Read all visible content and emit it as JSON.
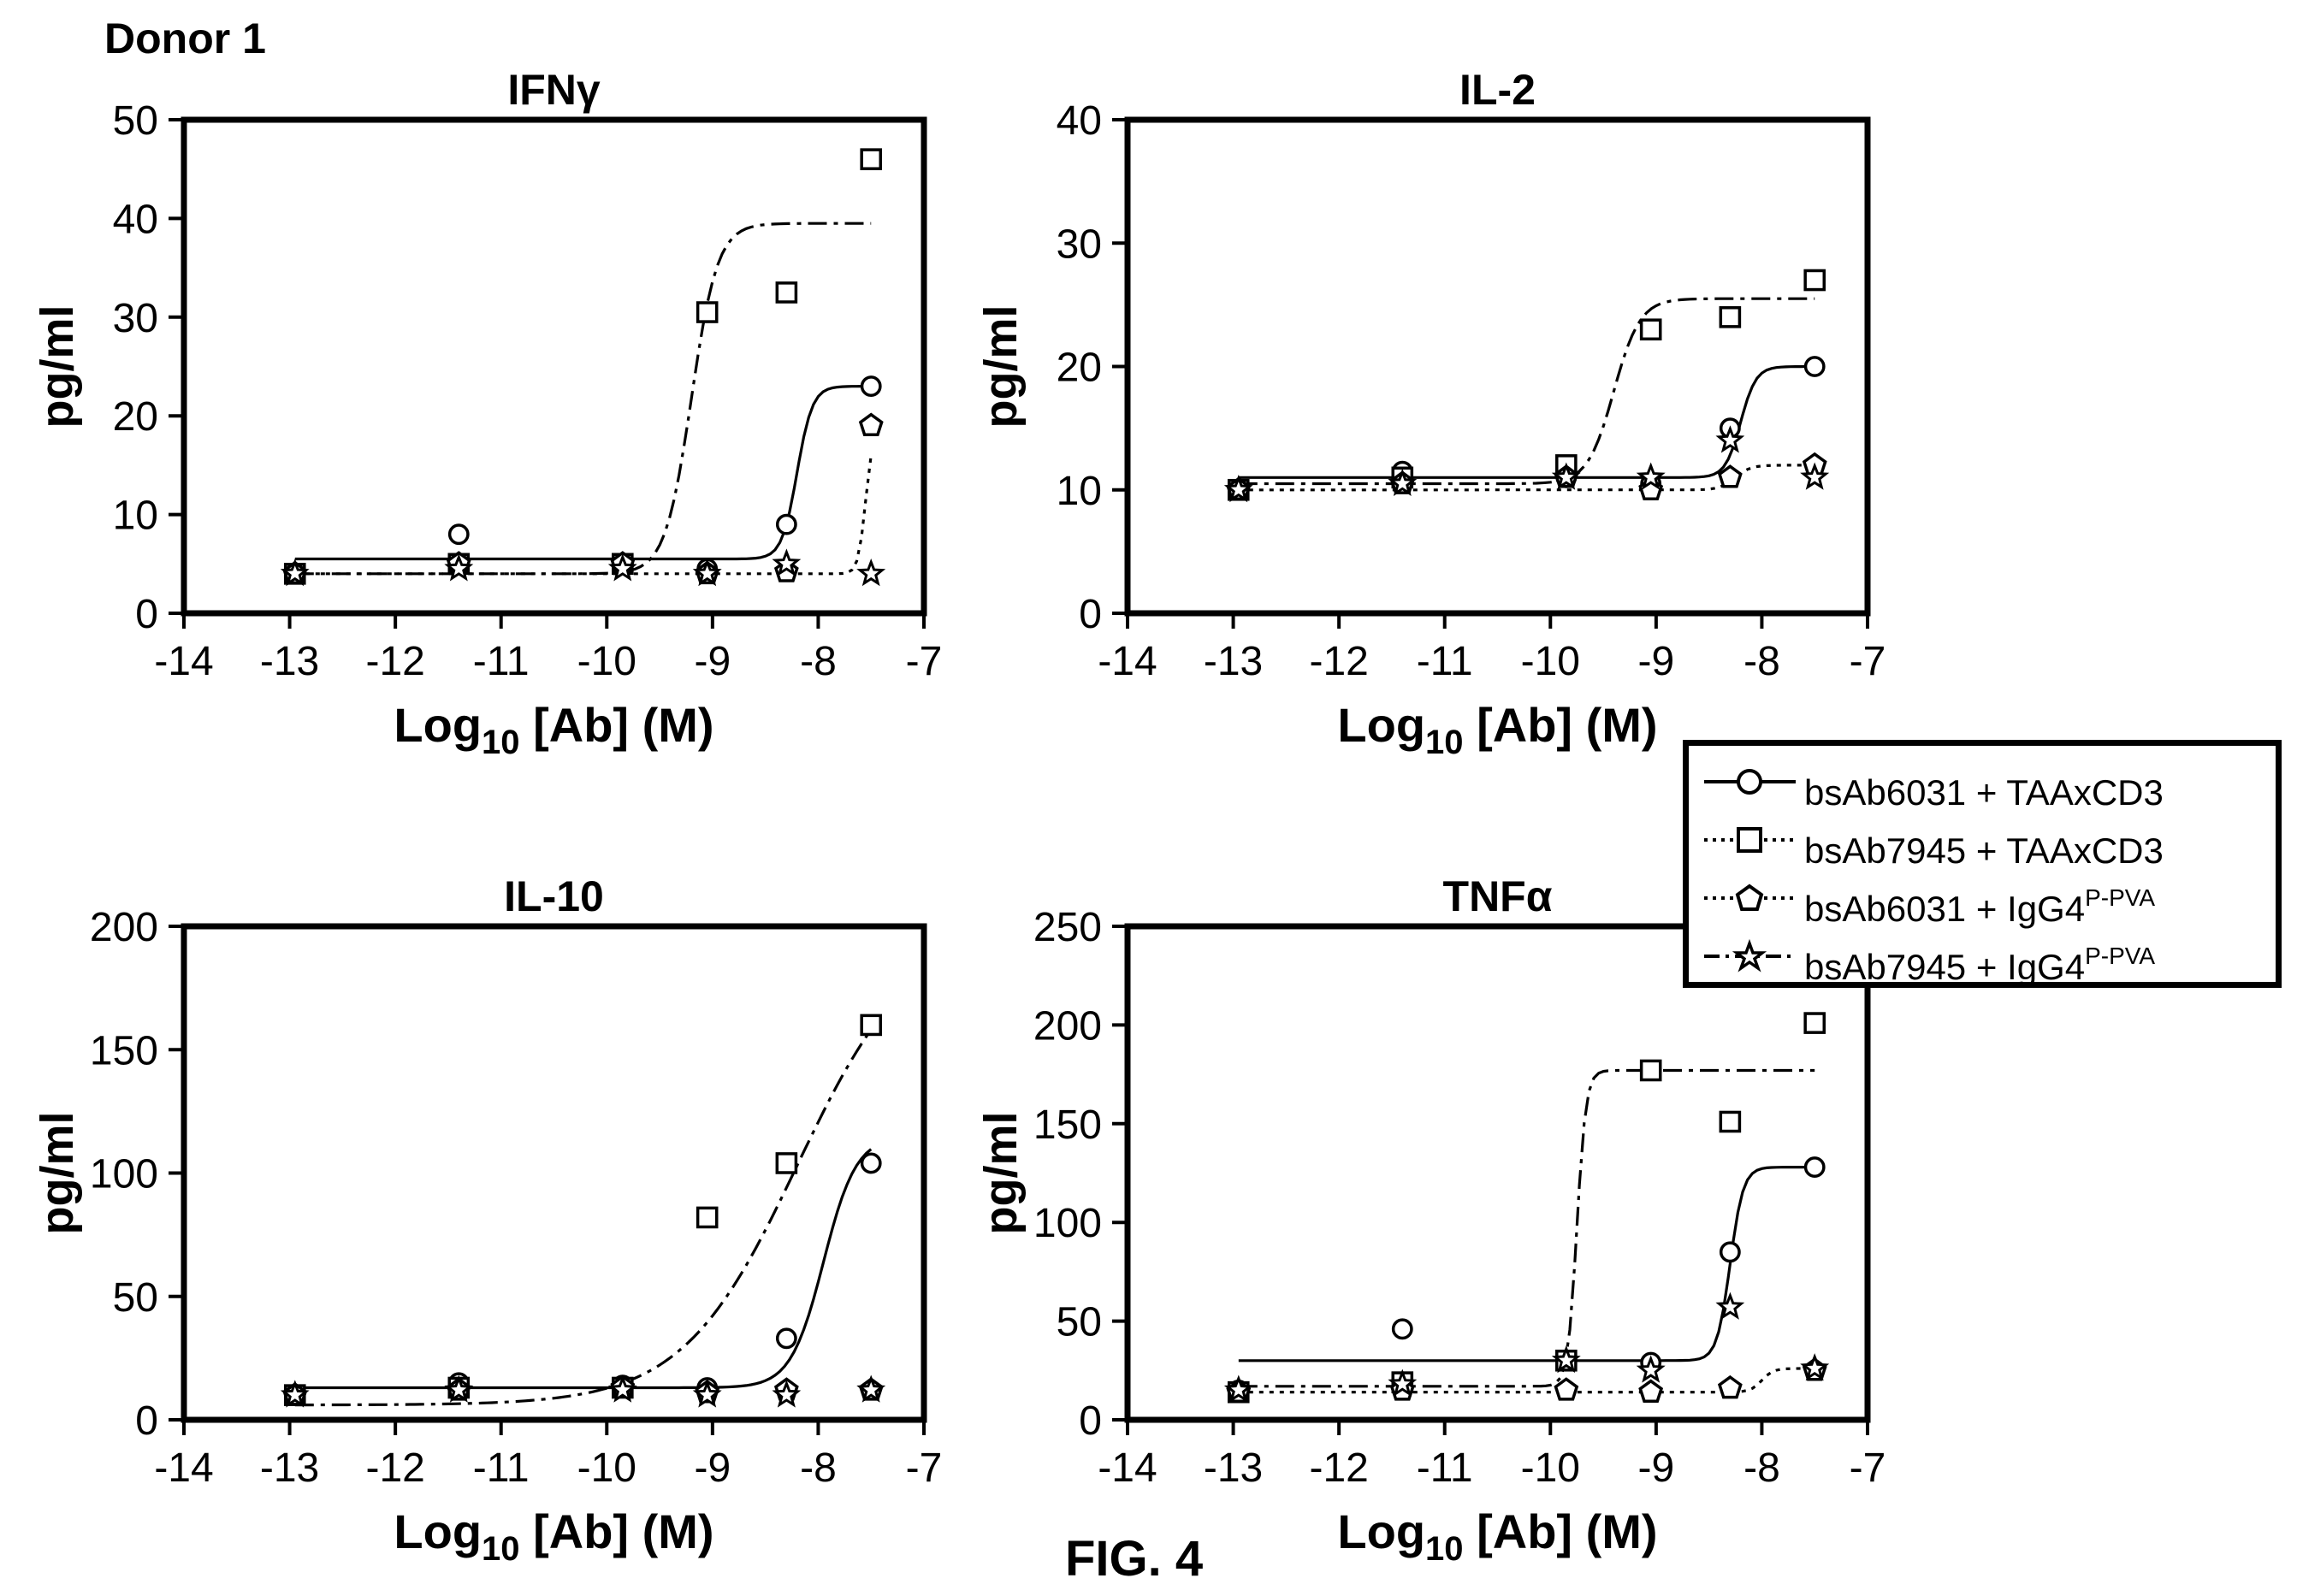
{
  "figure": {
    "donor_label": "Donor 1",
    "fig_label": "FIG. 4"
  },
  "legend": [
    {
      "name": "bsAb6031 + TAAxCD3",
      "main": "bsAb6031 + TAAxCD3",
      "sup": "",
      "marker": "circle",
      "line": "solid"
    },
    {
      "name": "bsAb7945 + TAAxCD3",
      "main": "bsAb7945 + TAAxCD3",
      "sup": "",
      "marker": "square",
      "line": "dotted"
    },
    {
      "name": "bsAb6031 + IgG4P-PVA",
      "main": "bsAb6031 + IgG4",
      "sup": "P-PVA",
      "marker": "pentagon",
      "line": "dotted"
    },
    {
      "name": "bsAb7945 + IgG4P-PVA",
      "main": "bsAb7945 + IgG4",
      "sup": "P-PVA",
      "marker": "star",
      "line": "dashdot"
    }
  ],
  "chart_data": [
    {
      "type": "scatter",
      "title": "IFNγ",
      "xlabel": "Log10 [Ab] (M)",
      "ylabel": "pg/ml",
      "xlim": [
        -14,
        -7
      ],
      "ylim": [
        0,
        50
      ],
      "xticks": [
        -14,
        -13,
        -12,
        -11,
        -10,
        -9,
        -8,
        -7
      ],
      "yticks": [
        0,
        10,
        20,
        30,
        40,
        50
      ],
      "series": [
        {
          "name": "bsAb6031 + TAAxCD3",
          "marker": "circle",
          "points": [
            [
              -12.95,
              4
            ],
            [
              -11.4,
              8
            ],
            [
              -9.85,
              5
            ],
            [
              -9.05,
              4.5
            ],
            [
              -8.3,
              9
            ],
            [
              -7.5,
              23
            ]
          ],
          "fit": {
            "bottom": 5.5,
            "top": 23,
            "ec50": -8.2,
            "hill": 6
          }
        },
        {
          "name": "bsAb7945 + TAAxCD3",
          "marker": "square",
          "points": [
            [
              -12.95,
              4
            ],
            [
              -11.4,
              5
            ],
            [
              -9.85,
              5
            ],
            [
              -9.05,
              30.5
            ],
            [
              -8.3,
              32.5
            ],
            [
              -7.5,
              46
            ]
          ],
          "fit": {
            "bottom": 4,
            "top": 39.5,
            "ec50": -9.2,
            "hill": 3.5
          }
        },
        {
          "name": "bsAb6031 + IgG4P-PVA",
          "marker": "pentagon",
          "points": [
            [
              -12.95,
              4
            ],
            [
              -11.4,
              5
            ],
            [
              -9.85,
              5
            ],
            [
              -9.05,
              4
            ],
            [
              -8.3,
              4.2
            ],
            [
              -7.5,
              19
            ]
          ],
          "fit": {
            "bottom": 4,
            "top": 19,
            "ec50": -7.55,
            "hill": 12
          }
        },
        {
          "name": "bsAb7945 + IgG4P-PVA",
          "marker": "star",
          "points": [
            [
              -12.95,
              4
            ],
            [
              -11.4,
              4.5
            ],
            [
              -9.85,
              4.5
            ],
            [
              -9.05,
              4
            ],
            [
              -8.3,
              5
            ],
            [
              -7.5,
              4
            ]
          ],
          "fit": null
        }
      ]
    },
    {
      "type": "scatter",
      "title": "IL-2",
      "xlabel": "Log10 [Ab] (M)",
      "ylabel": "pg/ml",
      "xlim": [
        -14,
        -7
      ],
      "ylim": [
        0,
        40
      ],
      "xticks": [
        -14,
        -13,
        -12,
        -11,
        -10,
        -9,
        -8,
        -7
      ],
      "yticks": [
        0,
        10,
        20,
        30,
        40
      ],
      "series": [
        {
          "name": "bsAb6031 + TAAxCD3",
          "marker": "circle",
          "points": [
            [
              -12.95,
              10
            ],
            [
              -11.4,
              11.5
            ],
            [
              -9.85,
              11
            ],
            [
              -9.05,
              10.5
            ],
            [
              -8.3,
              15
            ],
            [
              -7.5,
              20
            ]
          ],
          "fit": {
            "bottom": 11,
            "top": 20,
            "ec50": -8.2,
            "hill": 6
          }
        },
        {
          "name": "bsAb7945 + TAAxCD3",
          "marker": "square",
          "points": [
            [
              -12.95,
              10
            ],
            [
              -11.4,
              11
            ],
            [
              -9.85,
              12
            ],
            [
              -9.05,
              23
            ],
            [
              -8.3,
              24
            ],
            [
              -7.5,
              27
            ]
          ],
          "fit": {
            "bottom": 10.5,
            "top": 25.5,
            "ec50": -9.4,
            "hill": 3.5
          }
        },
        {
          "name": "bsAb6031 + IgG4P-PVA",
          "marker": "pentagon",
          "points": [
            [
              -12.95,
              10
            ],
            [
              -11.4,
              10.5
            ],
            [
              -9.85,
              11
            ],
            [
              -9.05,
              10
            ],
            [
              -8.3,
              11
            ],
            [
              -7.5,
              12
            ]
          ],
          "fit": {
            "bottom": 10,
            "top": 12,
            "ec50": -8.25,
            "hill": 6
          }
        },
        {
          "name": "bsAb7945 + IgG4P-PVA",
          "marker": "star",
          "points": [
            [
              -12.95,
              10
            ],
            [
              -11.4,
              10.5
            ],
            [
              -9.85,
              11
            ],
            [
              -9.05,
              11
            ],
            [
              -8.3,
              14
            ],
            [
              -7.5,
              11
            ]
          ],
          "fit": null
        }
      ]
    },
    {
      "type": "scatter",
      "title": "IL-10",
      "xlabel": "Log10 [Ab] (M)",
      "ylabel": "pg/ml",
      "xlim": [
        -14,
        -7
      ],
      "ylim": [
        0,
        200
      ],
      "xticks": [
        -14,
        -13,
        -12,
        -11,
        -10,
        -9,
        -8,
        -7
      ],
      "yticks": [
        0,
        50,
        100,
        150,
        200
      ],
      "series": [
        {
          "name": "bsAb6031 + TAAxCD3",
          "marker": "circle",
          "points": [
            [
              -12.95,
              10
            ],
            [
              -11.4,
              15
            ],
            [
              -9.85,
              14
            ],
            [
              -9.05,
              13
            ],
            [
              -8.3,
              33
            ],
            [
              -7.5,
              104
            ]
          ],
          "fit": {
            "bottom": 13,
            "top": 115,
            "ec50": -7.95,
            "hill": 2.8
          }
        },
        {
          "name": "bsAb7945 + TAAxCD3",
          "marker": "square",
          "points": [
            [
              -12.95,
              10
            ],
            [
              -11.4,
              13
            ],
            [
              -9.85,
              13
            ],
            [
              -9.05,
              82
            ],
            [
              -8.3,
              104
            ],
            [
              -7.5,
              160
            ]
          ],
          "fit": {
            "bottom": 6,
            "top": 200,
            "ec50": -8.2,
            "hill": 0.8
          }
        },
        {
          "name": "bsAb6031 + IgG4P-PVA",
          "marker": "pentagon",
          "points": [
            [
              -12.95,
              10
            ],
            [
              -11.4,
              12
            ],
            [
              -9.85,
              13
            ],
            [
              -9.05,
              11
            ],
            [
              -8.3,
              12
            ],
            [
              -7.5,
              12
            ]
          ],
          "fit": null
        },
        {
          "name": "bsAb7945 + IgG4P-PVA",
          "marker": "star",
          "points": [
            [
              -12.95,
              10
            ],
            [
              -11.4,
              12
            ],
            [
              -9.85,
              12
            ],
            [
              -9.05,
              10
            ],
            [
              -8.3,
              10
            ],
            [
              -7.5,
              12
            ]
          ],
          "fit": null
        }
      ]
    },
    {
      "type": "scatter",
      "title": "TNFα",
      "xlabel": "Log10 [Ab] (M)",
      "ylabel": "pg/ml",
      "xlim": [
        -14,
        -7
      ],
      "ylim": [
        0,
        250
      ],
      "xticks": [
        -14,
        -13,
        -12,
        -11,
        -10,
        -9,
        -8,
        -7
      ],
      "yticks": [
        0,
        50,
        100,
        150,
        200,
        250
      ],
      "series": [
        {
          "name": "bsAb6031 + TAAxCD3",
          "marker": "circle",
          "points": [
            [
              -12.95,
              15
            ],
            [
              -11.4,
              46
            ],
            [
              -9.85,
              30
            ],
            [
              -9.05,
              29
            ],
            [
              -8.3,
              85
            ],
            [
              -7.5,
              128
            ]
          ],
          "fit": {
            "bottom": 30,
            "top": 128,
            "ec50": -8.3,
            "hill": 7
          }
        },
        {
          "name": "bsAb7945 + TAAxCD3",
          "marker": "square",
          "points": [
            [
              -12.95,
              14
            ],
            [
              -11.4,
              19
            ],
            [
              -9.85,
              30
            ],
            [
              -9.05,
              177
            ],
            [
              -8.3,
              151
            ],
            [
              -7.5,
              201
            ]
          ],
          "fit": {
            "bottom": 17,
            "top": 177,
            "ec50": -9.75,
            "hill": 10
          }
        },
        {
          "name": "bsAb6031 + IgG4P-PVA",
          "marker": "pentagon",
          "points": [
            [
              -12.95,
              14
            ],
            [
              -11.4,
              15
            ],
            [
              -9.85,
              15
            ],
            [
              -9.05,
              14
            ],
            [
              -8.3,
              16
            ],
            [
              -7.5,
              25
            ]
          ],
          "fit": {
            "bottom": 14,
            "top": 26,
            "ec50": -8.0,
            "hill": 8
          }
        },
        {
          "name": "bsAb7945 + IgG4P-PVA",
          "marker": "star",
          "points": [
            [
              -12.95,
              15
            ],
            [
              -11.4,
              18
            ],
            [
              -9.85,
              30
            ],
            [
              -9.05,
              25
            ],
            [
              -8.3,
              57
            ],
            [
              -7.5,
              26
            ]
          ],
          "fit": null
        }
      ]
    }
  ]
}
